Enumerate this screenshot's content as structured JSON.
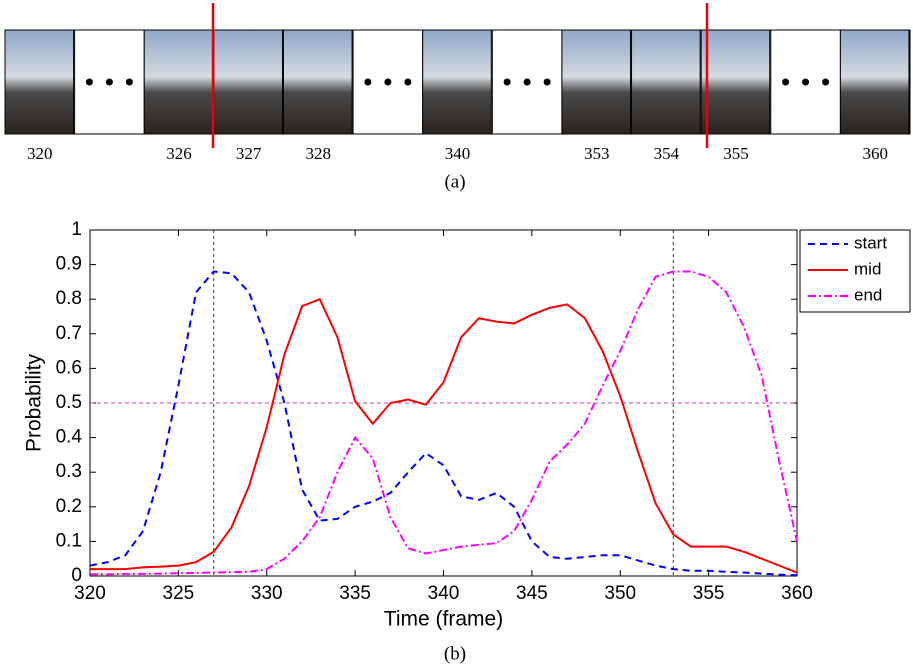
{
  "filmstrip": {
    "frames": [
      "320",
      "326",
      "327",
      "328",
      "340",
      "353",
      "354",
      "355",
      "360"
    ],
    "caption": "(a)"
  },
  "chart_data": {
    "type": "line",
    "xlabel": "Time (frame)",
    "ylabel": "Probability",
    "caption": "(b)",
    "x": [
      320,
      321,
      322,
      323,
      324,
      325,
      326,
      327,
      328,
      329,
      330,
      331,
      332,
      333,
      334,
      335,
      336,
      337,
      338,
      339,
      340,
      341,
      342,
      343,
      344,
      345,
      346,
      347,
      348,
      349,
      350,
      351,
      352,
      353,
      354,
      355,
      356,
      357,
      358,
      359,
      360
    ],
    "series": [
      {
        "name": "start",
        "color": "#0000ff",
        "dash": "7,5",
        "values": [
          0.03,
          0.04,
          0.06,
          0.13,
          0.3,
          0.55,
          0.82,
          0.88,
          0.875,
          0.82,
          0.68,
          0.5,
          0.25,
          0.16,
          0.165,
          0.2,
          0.215,
          0.24,
          0.3,
          0.355,
          0.32,
          0.23,
          0.22,
          0.24,
          0.2,
          0.1,
          0.055,
          0.05,
          0.055,
          0.06,
          0.06,
          0.045,
          0.03,
          0.02,
          0.015,
          0.015,
          0.012,
          0.01,
          0.007,
          0.004,
          0.002
        ]
      },
      {
        "name": "mid",
        "color": "#ff0000",
        "dash": "none",
        "values": [
          0.02,
          0.02,
          0.02,
          0.025,
          0.027,
          0.03,
          0.04,
          0.07,
          0.14,
          0.26,
          0.43,
          0.64,
          0.78,
          0.8,
          0.69,
          0.505,
          0.44,
          0.5,
          0.51,
          0.495,
          0.56,
          0.69,
          0.745,
          0.735,
          0.73,
          0.755,
          0.775,
          0.785,
          0.745,
          0.65,
          0.52,
          0.36,
          0.21,
          0.12,
          0.085,
          0.085,
          0.085,
          0.07,
          0.05,
          0.03,
          0.01
        ]
      },
      {
        "name": "end",
        "color": "#ff00ff",
        "dash": "8,3,2,3",
        "values": [
          0.005,
          0.005,
          0.006,
          0.006,
          0.007,
          0.008,
          0.009,
          0.01,
          0.011,
          0.012,
          0.02,
          0.05,
          0.1,
          0.17,
          0.3,
          0.4,
          0.34,
          0.17,
          0.08,
          0.065,
          0.075,
          0.085,
          0.09,
          0.095,
          0.13,
          0.22,
          0.33,
          0.38,
          0.44,
          0.55,
          0.65,
          0.77,
          0.865,
          0.88,
          0.88,
          0.865,
          0.82,
          0.72,
          0.58,
          0.33,
          0.1
        ]
      }
    ],
    "xlim": [
      320,
      360
    ],
    "xticks": [
      320,
      325,
      330,
      335,
      340,
      345,
      350,
      355,
      360
    ],
    "ylim": [
      0,
      1
    ],
    "yticks": [
      0,
      0.1,
      0.2,
      0.3,
      0.4,
      0.5,
      0.6,
      0.7,
      0.8,
      0.9,
      1
    ],
    "vlines": [
      327,
      353
    ],
    "hline": 0.5,
    "legend": "upper-right"
  }
}
